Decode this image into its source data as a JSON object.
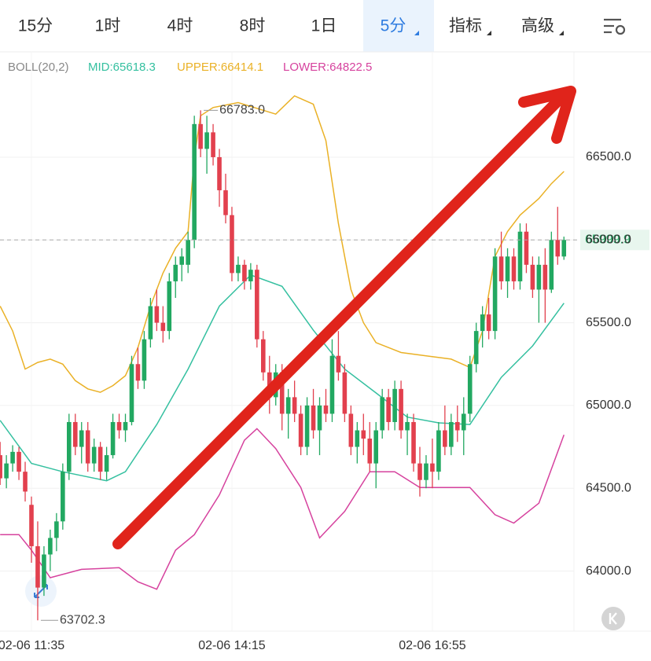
{
  "tabs": {
    "items": [
      "15分",
      "1时",
      "4时",
      "8时",
      "1日",
      "5分",
      "指标",
      "高级"
    ],
    "active": 5
  },
  "chart_data": {
    "type": "candlestick",
    "indicator": "BOLL(20,2)",
    "candles": {
      "open": [
        64700,
        64560,
        64650,
        64720,
        64600,
        64400,
        64150,
        63900,
        64100,
        64200,
        64300,
        64600,
        64900,
        64750,
        64850,
        64650,
        64750,
        64600,
        64700,
        64900,
        64850,
        64900,
        65250,
        65150,
        65400,
        65600,
        65500,
        65450,
        65750,
        65850,
        65850,
        66000,
        66700,
        66550,
        66650,
        66500,
        66300,
        66150,
        65800,
        65850,
        65750,
        65820,
        65400,
        65200,
        65050,
        65200,
        64950,
        65050,
        64950,
        64750,
        65000,
        64850,
        65000,
        64950,
        65300,
        65200,
        64950,
        64750,
        64850,
        64800,
        64650,
        64850,
        65050,
        64900,
        65100,
        64850,
        64900,
        64650,
        64550,
        64650,
        64600,
        64850,
        64750,
        64900,
        64850,
        64950,
        65250,
        65450,
        65550,
        65450,
        65900,
        65750,
        65900,
        65750,
        66050,
        65850,
        65700,
        65850,
        65700,
        66000,
        65900
      ],
      "high": [
        64780,
        64700,
        64760,
        64750,
        64660,
        64450,
        64300,
        64150,
        64250,
        64350,
        64650,
        64950,
        64950,
        64900,
        64900,
        64800,
        64780,
        64750,
        64950,
        64950,
        64950,
        65300,
        65350,
        65450,
        65650,
        65700,
        65600,
        65800,
        65900,
        65950,
        66050,
        66750,
        66783,
        66750,
        66700,
        66550,
        66400,
        66200,
        65900,
        65880,
        65860,
        65850,
        65450,
        65300,
        65250,
        65250,
        65100,
        65150,
        65000,
        65050,
        65100,
        65050,
        65100,
        65400,
        65450,
        65250,
        65000,
        64900,
        64950,
        64900,
        64900,
        65100,
        65100,
        65150,
        65150,
        64950,
        64950,
        64750,
        64700,
        64800,
        64900,
        65000,
        64950,
        65000,
        65050,
        65300,
        65500,
        65600,
        65650,
        65950,
        66050,
        65950,
        65950,
        66100,
        66100,
        65900,
        65900,
        65950,
        66050,
        66200,
        66020
      ],
      "low": [
        64520,
        64500,
        64600,
        64550,
        64420,
        64050,
        63702.3,
        63850,
        64000,
        64120,
        64250,
        64550,
        64700,
        64650,
        64600,
        64600,
        64550,
        64550,
        64680,
        64800,
        64780,
        64880,
        65100,
        65100,
        65350,
        65450,
        65380,
        65400,
        65650,
        65750,
        65800,
        65950,
        66500,
        66400,
        66450,
        66200,
        66100,
        65750,
        65750,
        65700,
        65700,
        65350,
        65150,
        64950,
        65000,
        64850,
        64800,
        64900,
        64700,
        64700,
        64800,
        64700,
        64900,
        64900,
        65150,
        64900,
        64700,
        64650,
        64700,
        64600,
        64500,
        64800,
        64850,
        64850,
        64800,
        64700,
        64600,
        64450,
        64500,
        64500,
        64550,
        64700,
        64700,
        64780,
        64700,
        64900,
        65200,
        65350,
        65400,
        65400,
        65700,
        65650,
        65700,
        65700,
        65800,
        65650,
        65500,
        65500,
        65680,
        65850,
        65880
      ],
      "close": [
        64560,
        64650,
        64720,
        64600,
        64480,
        64150,
        63900,
        64100,
        64200,
        64300,
        64600,
        64900,
        64750,
        64850,
        64650,
        64750,
        64600,
        64700,
        64900,
        64850,
        64900,
        65250,
        65150,
        65400,
        65600,
        65500,
        65450,
        65750,
        65850,
        65900,
        66000,
        66700,
        66550,
        66650,
        66500,
        66300,
        66150,
        65800,
        65850,
        65750,
        65820,
        65400,
        65200,
        65050,
        65200,
        64950,
        65050,
        64950,
        64750,
        65000,
        64850,
        65000,
        64950,
        65300,
        65200,
        64950,
        64750,
        64850,
        64800,
        64650,
        64850,
        65050,
        64900,
        65100,
        64850,
        64900,
        64650,
        64550,
        64650,
        64600,
        64850,
        64750,
        64900,
        64850,
        64950,
        65250,
        65450,
        65550,
        65450,
        65900,
        65750,
        65900,
        65750,
        66050,
        65850,
        65700,
        65850,
        65700,
        66000,
        65900,
        65999.9
      ]
    },
    "up_color": "#22a861",
    "down_color": "#e2404e",
    "series": [
      {
        "name": "MID:65618.3",
        "color": "#35c0a0",
        "x": [
          0,
          5,
          10,
          17,
          20,
          25,
          30,
          35,
          40,
          45,
          50,
          55,
          60,
          65,
          70,
          75,
          80,
          85,
          90
        ],
        "values": [
          64910,
          64650,
          64600,
          64545,
          64600,
          64885,
          65220,
          65600,
          65788,
          65720,
          65455,
          65220,
          65076,
          64930,
          64895,
          64885,
          65170,
          65360,
          65618.3
        ]
      },
      {
        "name": "UPPER:66414.1",
        "color": "#eab126",
        "x": [
          0,
          2,
          4,
          6,
          8,
          10,
          12,
          14,
          16,
          18,
          20,
          22,
          24,
          26,
          28,
          30,
          31,
          32,
          34,
          38,
          44,
          47,
          50,
          52,
          54,
          56,
          58,
          60,
          64,
          68,
          72,
          75,
          77,
          79,
          81,
          83,
          86,
          88,
          90
        ],
        "values": [
          65600,
          65450,
          65220,
          65260,
          65280,
          65250,
          65150,
          65100,
          65080,
          65120,
          65180,
          65350,
          65600,
          65800,
          65950,
          66050,
          66500,
          66750,
          66800,
          66830,
          66760,
          66870,
          66820,
          66600,
          66100,
          65700,
          65500,
          65380,
          65320,
          65300,
          65280,
          65230,
          65450,
          65900,
          66050,
          66150,
          66250,
          66340,
          66414.1
        ]
      },
      {
        "name": "LOWER:64822.5",
        "color": "#d6429e",
        "x": [
          0,
          3,
          5,
          8,
          13,
          19,
          22,
          25,
          28,
          31,
          35,
          39,
          41,
          44,
          48,
          51,
          55,
          59,
          63,
          67,
          70,
          75,
          79,
          82,
          86,
          90
        ],
        "values": [
          64220,
          64220,
          64126,
          63960,
          64010,
          64020,
          63935,
          63890,
          64126,
          64220,
          64460,
          64790,
          64860,
          64740,
          64505,
          64200,
          64360,
          64600,
          64600,
          64505,
          64505,
          64505,
          64340,
          64290,
          64410,
          64822.5
        ]
      }
    ],
    "annotations": [
      "66783.0",
      "63702.3"
    ],
    "last_price": 65999.9,
    "xlim": [
      -0.02,
      91.6
    ],
    "xticks": [
      {
        "value": 5,
        "label": "02-06 11:35"
      },
      {
        "value": 37,
        "label": "02-06 14:15"
      },
      {
        "value": 69,
        "label": "02-06 16:55"
      }
    ],
    "ylim": [
      63637,
      67136
    ],
    "yticks": [
      {
        "value": 64000,
        "label": "64000.0"
      },
      {
        "value": 64500,
        "label": "64500.0"
      },
      {
        "value": 65000,
        "label": "65000.0"
      },
      {
        "value": 65500,
        "label": "65500.0"
      },
      {
        "value": 66000,
        "label": "66000.0"
      },
      {
        "value": 66500,
        "label": "66500.0"
      }
    ],
    "grid": true
  }
}
